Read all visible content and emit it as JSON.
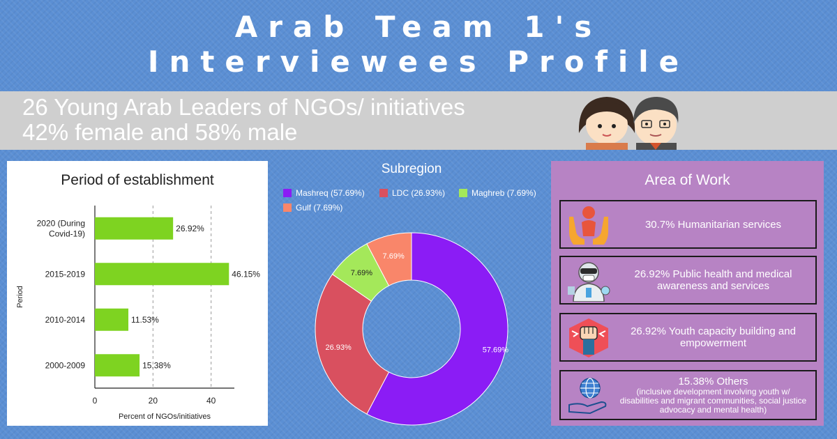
{
  "header": {
    "title_line1": "Arab Team 1's",
    "title_line2": "Interviewees Profile"
  },
  "banner": {
    "line1": "26 Young Arab Leaders of NGOs/ initiatives",
    "line2": "42% female and 58% male"
  },
  "chart_data": [
    {
      "type": "bar",
      "orientation": "horizontal",
      "title": "Period of establishment",
      "xlabel": "Percent of NGOs/initiatives",
      "ylabel": "Period",
      "categories": [
        "2020 (During Covid-19)",
        "2015-2019",
        "2010-2014",
        "2000-2009"
      ],
      "category_lines": [
        [
          "2020 (During",
          "Covid-19)"
        ],
        [
          "2015-2019"
        ],
        [
          "2010-2014"
        ],
        [
          "2000-2009"
        ]
      ],
      "values": [
        26.92,
        46.15,
        11.53,
        15.38
      ],
      "data_labels": [
        "26.92%",
        "46.15%",
        "11.53%",
        "15.38%"
      ],
      "xticks": [
        0,
        20,
        40
      ],
      "xlim": [
        0,
        48
      ],
      "grid": "vertical dashed",
      "color": "#7ed321"
    },
    {
      "type": "pie",
      "donut": true,
      "title": "Subregion",
      "legend_position": "top",
      "series": [
        {
          "name": "Mashreq",
          "legend": "Mashreq (57.69%)",
          "value": 57.69,
          "label": "57.69%",
          "color": "#8b1cf5"
        },
        {
          "name": "LDC",
          "legend": "LDC (26.93%)",
          "value": 26.93,
          "label": "26.93%",
          "color": "#d9505f"
        },
        {
          "name": "Maghreb",
          "legend": "Maghreb (7.69%)",
          "value": 7.69,
          "label": "7.69%",
          "color": "#a4e85a"
        },
        {
          "name": "Gulf",
          "legend": "Gulf (7.69%)",
          "value": 7.69,
          "label": "7.69%",
          "color": "#f9866a"
        }
      ]
    }
  ],
  "area_of_work": {
    "title": "Area of Work",
    "items": [
      {
        "text": "30.7% Humanitarian services",
        "icon": "hands-heart-icon"
      },
      {
        "text": "26.92% Public health and medical awareness and services",
        "icon": "medical-worker-icon"
      },
      {
        "text": "26.92% Youth capacity building and empowerment",
        "icon": "raised-fist-icon"
      },
      {
        "text": "15.38% Others",
        "sub": "(inclusive development involving youth w/ disabilities and migrant communities, social justice advocacy and  mental health)",
        "icon": "globe-hand-icon"
      }
    ]
  },
  "icons": {
    "banner": "people-avatars-icon"
  }
}
